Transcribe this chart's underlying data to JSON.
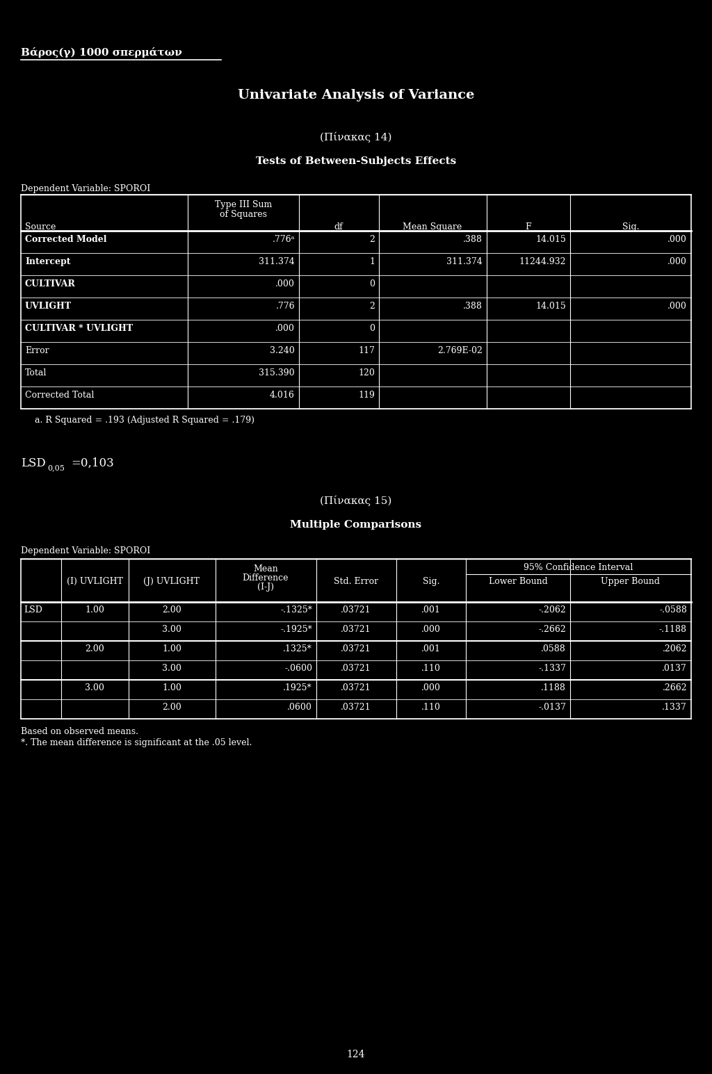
{
  "bg_color": "#000000",
  "text_color": "#ffffff",
  "page_number": "124",
  "header_text": "Βάρος(γ) 1000 σπερμάτων",
  "main_title": "Univariate Analysis of Variance",
  "table1_title": "(Πίνακας 14)",
  "table1_subtitle": "Tests of Between-Subjects Effects",
  "table1_dep_var": "Dependent Variable: SPOROI",
  "table1_col_headers": [
    "Source",
    "Type III Sum\nof Squares",
    "df",
    "Mean Square",
    "F",
    "Sig."
  ],
  "table1_rows": [
    [
      "Corrected Model",
      ".776ᵃ",
      "2",
      ".388",
      "14.015",
      ".000"
    ],
    [
      "Intercept",
      "311.374",
      "1",
      "311.374",
      "11244.932",
      ".000"
    ],
    [
      "CULTIVAR",
      ".000",
      "0",
      "",
      "",
      ""
    ],
    [
      "UVLIGHT",
      ".776",
      "2",
      ".388",
      "14.015",
      ".000"
    ],
    [
      "CULTIVAR * UVLIGHT",
      ".000",
      "0",
      "",
      "",
      ""
    ],
    [
      "Error",
      "3.240",
      "117",
      "2.769E-02",
      "",
      ""
    ],
    [
      "Total",
      "315.390",
      "120",
      "",
      "",
      ""
    ],
    [
      "Corrected Total",
      "4.016",
      "119",
      "",
      "",
      ""
    ]
  ],
  "table1_footnote": "a. R Squared = .193 (Adjusted R Squared = .179)",
  "table2_title": "(Πίνακας 15)",
  "table2_subtitle": "Multiple Comparisons",
  "table2_dep_var": "Dependent Variable: SPOROI",
  "table2_ci_header": "95% Confidence Interval",
  "table2_rows": [
    [
      "LSD",
      "1.00",
      "2.00",
      "-.1325*",
      ".03721",
      ".001",
      "-.2062",
      "-.0588"
    ],
    [
      "",
      "",
      "3.00",
      "-.1925*",
      ".03721",
      ".000",
      "-.2662",
      "-.1188"
    ],
    [
      "",
      "2.00",
      "1.00",
      ".1325*",
      ".03721",
      ".001",
      ".0588",
      ".2062"
    ],
    [
      "",
      "",
      "3.00",
      "-.0600",
      ".03721",
      ".110",
      "-.1337",
      ".0137"
    ],
    [
      "",
      "3.00",
      "1.00",
      ".1925*",
      ".03721",
      ".000",
      ".1188",
      ".2662"
    ],
    [
      "",
      "",
      "2.00",
      ".0600",
      ".03721",
      ".110",
      "-.0137",
      ".1337"
    ]
  ],
  "table2_footnote1": "Based on observed means.",
  "table2_footnote2": "*. The mean difference is significant at the .05 level."
}
